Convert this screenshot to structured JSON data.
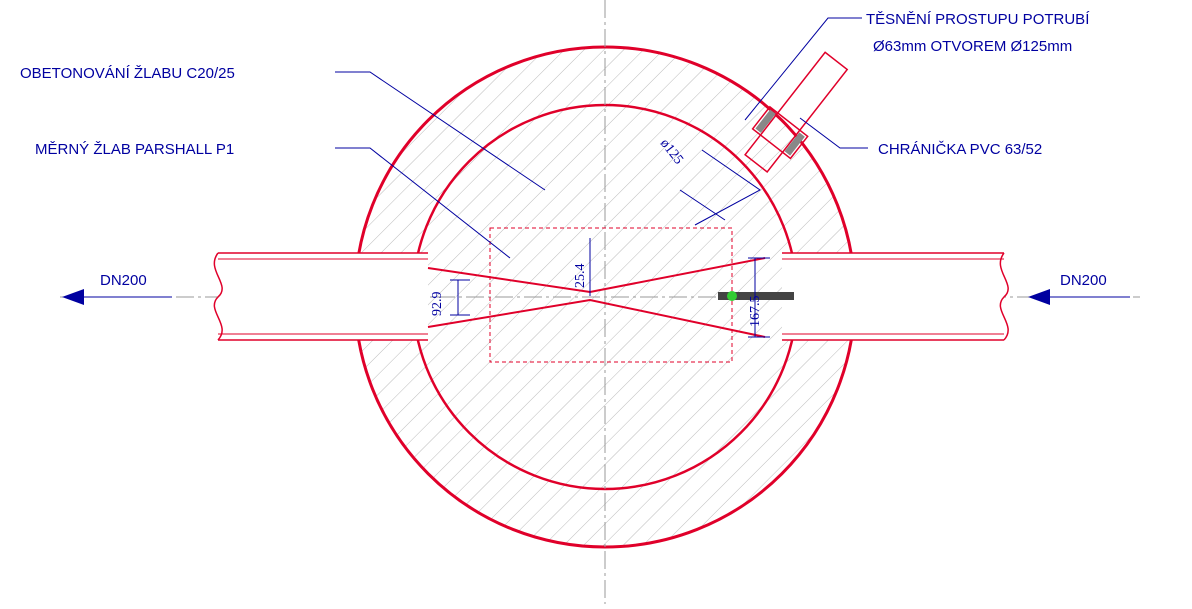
{
  "labels": {
    "concrete": "OBETONOVÁNÍ ŽLABU C20/25",
    "flume": "MĚRNÝ ŽLAB PARSHALL P1",
    "seal_line1": "TĚSNĚNÍ PROSTUPU POTRUBÍ",
    "seal_line2": "Ø63mm OTVOREM Ø125mm",
    "sleeve": "CHRÁNIČKA PVC 63/52",
    "outlet": "DN200",
    "inlet": "DN200"
  },
  "dimensions": {
    "hole": "ø125",
    "throat": "25.4",
    "outlet_width": "92.9",
    "inlet_width": "167.5"
  }
}
